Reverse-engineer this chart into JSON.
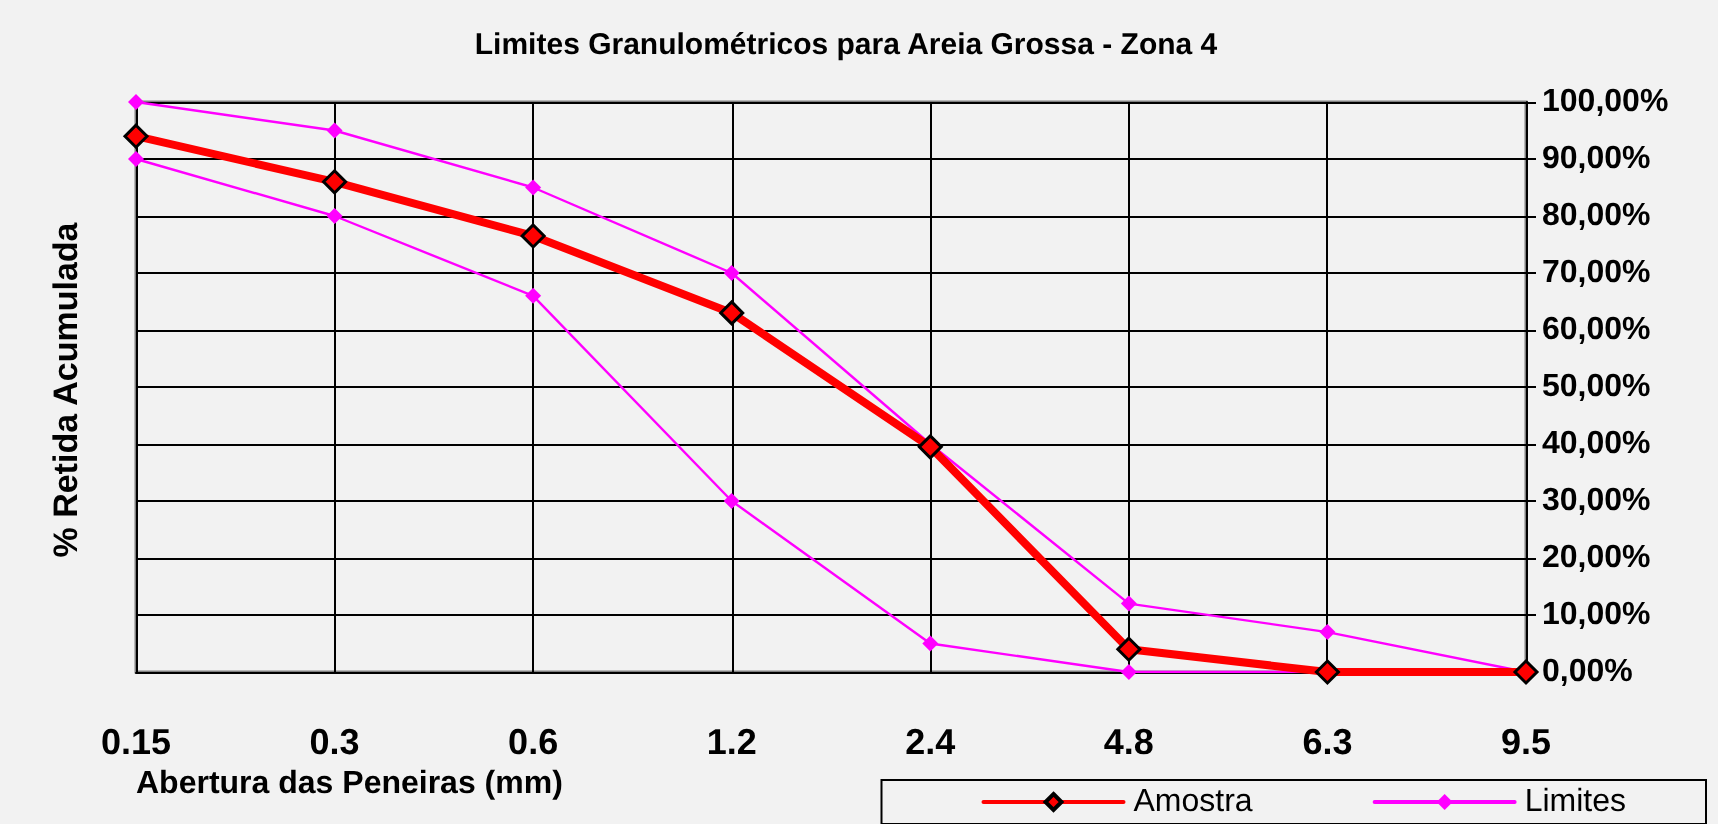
{
  "chart_data": {
    "type": "line",
    "title": "Limites Granulométricos para Areia Grossa - Zona 4",
    "xlabel": "Abertura das Peneiras (mm)",
    "ylabel": "% Retida Acumulada",
    "categories": [
      "0.15",
      "0.3",
      "0.6",
      "1.2",
      "2.4",
      "4.8",
      "6.3",
      "9.5"
    ],
    "series": [
      {
        "name": "Amostra",
        "color": "#ff0000",
        "values": [
          94,
          86,
          76.5,
          63,
          39.5,
          4,
          0,
          0
        ]
      },
      {
        "name": "Limites",
        "color": "#ff00ff",
        "values": [
          100,
          95,
          85,
          70,
          40,
          12,
          7,
          0
        ]
      },
      {
        "color": "#ff00ff",
        "values": [
          90,
          80,
          66,
          30,
          5,
          0,
          0,
          0
        ]
      }
    ],
    "ylim": [
      0,
      100
    ],
    "yticks": [
      {
        "value": 0,
        "label": "0,00%"
      },
      {
        "value": 10,
        "label": "10,00%"
      },
      {
        "value": 20,
        "label": "20,00%"
      },
      {
        "value": 30,
        "label": "30,00%"
      },
      {
        "value": 40,
        "label": "40,00%"
      },
      {
        "value": 50,
        "label": "50,00%"
      },
      {
        "value": 60,
        "label": "60,00%"
      },
      {
        "value": 70,
        "label": "70,00%"
      },
      {
        "value": 80,
        "label": "80,00%"
      },
      {
        "value": 90,
        "label": "90,00%"
      },
      {
        "value": 100,
        "label": "100,00%"
      }
    ],
    "grid": true,
    "legend": "bottom right",
    "marker": "diamond",
    "line_style": "solid"
  }
}
